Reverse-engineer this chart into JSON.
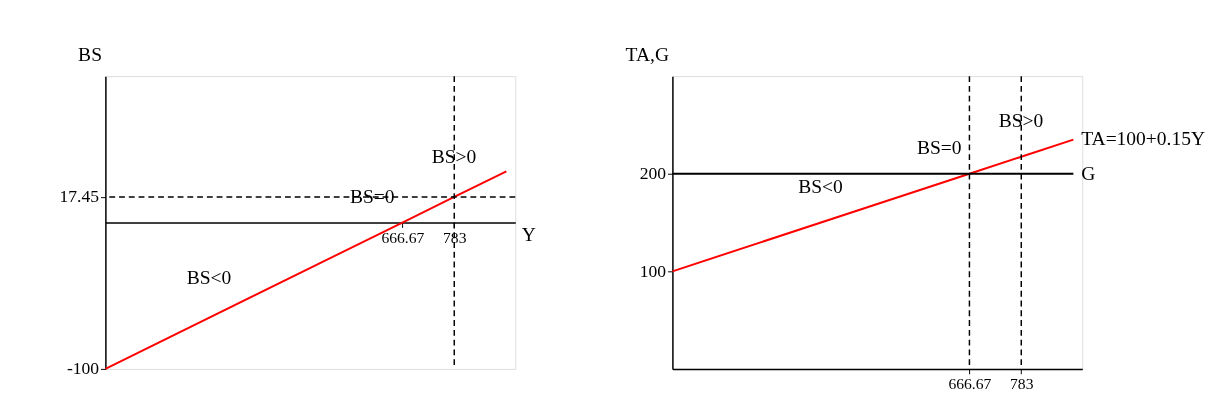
{
  "chart_data": [
    {
      "type": "line",
      "xlabel": "Y",
      "ylabel": "BS",
      "xlim": [
        0,
        920
      ],
      "ylim": [
        -100,
        100
      ],
      "xticks": [
        666.67,
        783
      ],
      "yticks": [
        -100,
        17.45
      ],
      "grid": false,
      "series": [
        {
          "color": "#ff0000",
          "x": [
            0,
            666.67,
            783,
            900
          ],
          "values": [
            -100,
            0,
            17.45,
            35
          ]
        }
      ],
      "ref_lines": [
        {
          "axis": "y",
          "value": 17.45,
          "color": "#000000",
          "line_style": "dashed"
        },
        {
          "axis": "x",
          "value": 783,
          "color": "#000000",
          "line_style": "dashed"
        }
      ],
      "annotations": [
        {
          "text": "BS=0",
          "x": 666.67,
          "y": 0
        },
        {
          "text": "BS>0",
          "x": 850,
          "y": 27.5
        },
        {
          "text": "BS<0",
          "x": 300,
          "y": -55
        }
      ]
    },
    {
      "type": "line",
      "ylabel": "TA,G",
      "xlim": [
        0,
        920
      ],
      "ylim": [
        0,
        300
      ],
      "xticks": [
        666.67,
        783
      ],
      "yticks": [
        100,
        200
      ],
      "grid": false,
      "series": [
        {
          "name": "TA=100+0.15Y",
          "color": "#ff0000",
          "x": [
            0,
            666.67,
            783,
            900
          ],
          "values": [
            100,
            200,
            217.45,
            235
          ]
        },
        {
          "name": "G",
          "color": "#000000",
          "x": [
            0,
            900
          ],
          "values": [
            200,
            200
          ]
        }
      ],
      "ref_lines": [
        {
          "axis": "x",
          "value": 666.67,
          "color": "#000000",
          "line_style": "dashed"
        },
        {
          "axis": "x",
          "value": 783,
          "color": "#000000",
          "line_style": "dashed"
        }
      ],
      "annotations": [
        {
          "text": "BS=0",
          "x": 666.67,
          "y": 200
        },
        {
          "text": "BS>0",
          "x": 850,
          "y": 227.5
        },
        {
          "text": "BS<0",
          "x": 400,
          "y": 160
        }
      ]
    }
  ]
}
